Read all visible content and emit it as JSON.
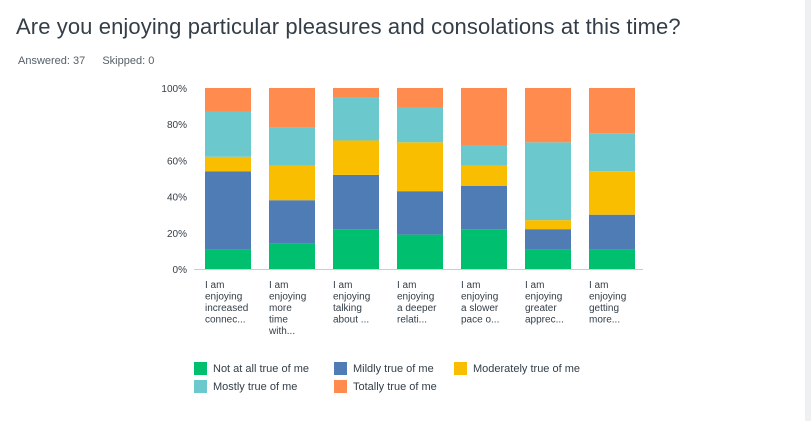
{
  "question": {
    "title": "Are you enjoying particular pleasures and consolations at this time?",
    "answered_label": "Answered: 37",
    "skipped_label": "Skipped: 0"
  },
  "chart_data": {
    "type": "bar",
    "stacked": "percent",
    "categories": [
      [
        "I am",
        "enjoying",
        "increased",
        "connec..."
      ],
      [
        "I am",
        "enjoying",
        "more",
        "time",
        "with..."
      ],
      [
        "I am",
        "enjoying",
        "talking",
        "about ..."
      ],
      [
        "I am",
        "enjoying",
        "a deeper",
        "relati..."
      ],
      [
        "I am",
        "enjoying",
        "a slower",
        "pace o..."
      ],
      [
        "I am",
        "enjoying",
        "greater",
        "apprec..."
      ],
      [
        "I am",
        "enjoying",
        "getting",
        "more..."
      ]
    ],
    "y_ticks": [
      "0%",
      "20%",
      "40%",
      "60%",
      "80%",
      "100%"
    ],
    "ylim": [
      0,
      100
    ],
    "series": [
      {
        "name": "Not at all true of me",
        "color": "#00bf6f",
        "values": [
          11,
          14,
          22,
          19,
          22,
          11,
          11
        ]
      },
      {
        "name": "Mildly true of me",
        "color": "#507cb6",
        "values": [
          43,
          24,
          30,
          24,
          24,
          11,
          19
        ]
      },
      {
        "name": "Moderately true of me",
        "color": "#f9be00",
        "values": [
          8,
          19,
          19,
          27,
          11,
          5,
          24
        ]
      },
      {
        "name": "Mostly true of me",
        "color": "#6bc8cd",
        "values": [
          25,
          21,
          24,
          19,
          11,
          43,
          21
        ]
      },
      {
        "name": "Totally true of me",
        "color": "#ff8b4f",
        "values": [
          13,
          22,
          5,
          11,
          32,
          30,
          25
        ]
      }
    ],
    "legend_position": "bottom"
  }
}
